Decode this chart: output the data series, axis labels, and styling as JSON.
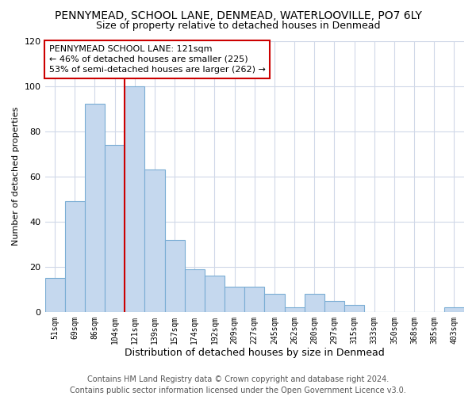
{
  "title": "PENNYMEAD, SCHOOL LANE, DENMEAD, WATERLOOVILLE, PO7 6LY",
  "subtitle": "Size of property relative to detached houses in Denmead",
  "xlabel": "Distribution of detached houses by size in Denmead",
  "ylabel": "Number of detached properties",
  "footer_line1": "Contains HM Land Registry data © Crown copyright and database right 2024.",
  "footer_line2": "Contains public sector information licensed under the Open Government Licence v3.0.",
  "categories": [
    "51sqm",
    "69sqm",
    "86sqm",
    "104sqm",
    "121sqm",
    "139sqm",
    "157sqm",
    "174sqm",
    "192sqm",
    "209sqm",
    "227sqm",
    "245sqm",
    "262sqm",
    "280sqm",
    "297sqm",
    "315sqm",
    "333sqm",
    "350sqm",
    "368sqm",
    "385sqm",
    "403sqm"
  ],
  "values": [
    15,
    49,
    92,
    74,
    100,
    63,
    32,
    19,
    16,
    11,
    11,
    8,
    2,
    8,
    5,
    3,
    0,
    0,
    0,
    0,
    2
  ],
  "bar_color": "#c5d8ee",
  "bar_edge_color": "#7aadd4",
  "highlight_index": 4,
  "highlight_line_color": "#cc0000",
  "annotation_text": "PENNYMEAD SCHOOL LANE: 121sqm\n← 46% of detached houses are smaller (225)\n53% of semi-detached houses are larger (262) →",
  "annotation_box_edge_color": "#cc0000",
  "annotation_box_face_color": "#ffffff",
  "ylim": [
    0,
    120
  ],
  "yticks": [
    0,
    20,
    40,
    60,
    80,
    100,
    120
  ],
  "background_color": "#ffffff",
  "grid_color": "#d0d8e8",
  "title_fontsize": 10,
  "subtitle_fontsize": 9,
  "xlabel_fontsize": 9,
  "ylabel_fontsize": 8,
  "footer_fontsize": 7
}
